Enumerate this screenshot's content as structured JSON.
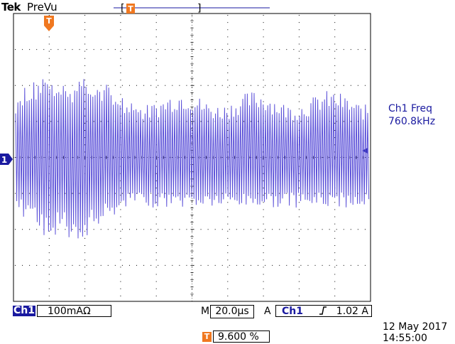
{
  "header": {
    "brand": "Tek",
    "mode": "PreVu"
  },
  "measurement": {
    "title": "Ch1 Freq",
    "value": "760.8kHz"
  },
  "channel": {
    "label": "Ch1",
    "marker": "1",
    "vertical_scale": "100mA",
    "coupling_icon": "Ω"
  },
  "timebase": {
    "m_label": "M",
    "scale": "20.0µs"
  },
  "trigger": {
    "a_label": "A",
    "source": "Ch1",
    "slope_icon": "rising-edge-icon",
    "level": "1.02 A",
    "marker": "T",
    "position": "9.600 %"
  },
  "datetime": {
    "date": "12 May 2017",
    "time": "14:55:00"
  },
  "colors": {
    "trace": "#5a4fd8",
    "accent": "#1a1aa0",
    "trigger_orange": "#f07820"
  }
}
